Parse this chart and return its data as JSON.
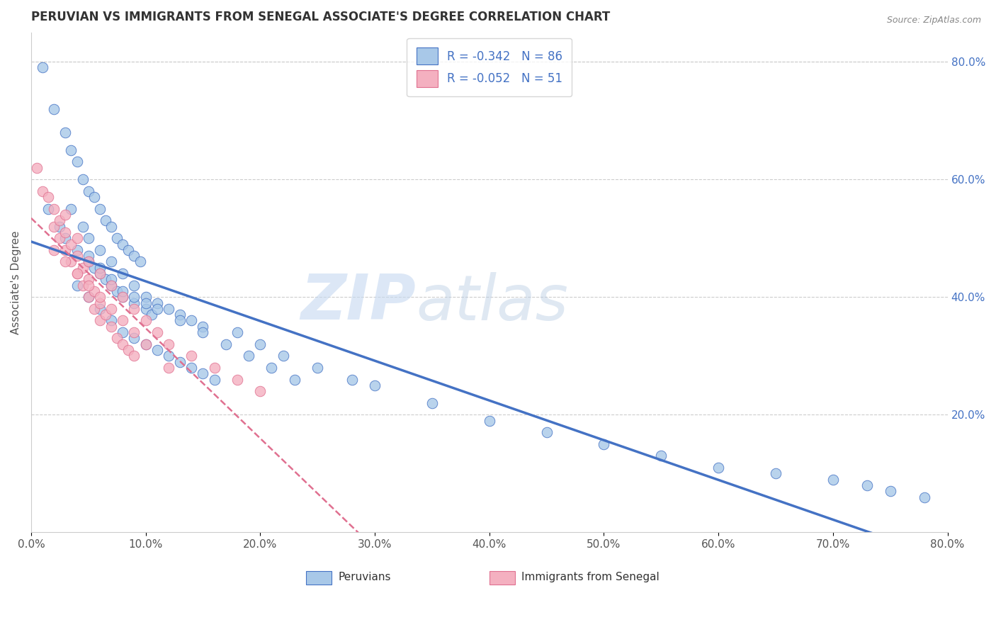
{
  "title": "PERUVIAN VS IMMIGRANTS FROM SENEGAL ASSOCIATE'S DEGREE CORRELATION CHART",
  "source": "Source: ZipAtlas.com",
  "ylabel": "Associate's Degree",
  "legend_label1": "R = -0.342   N = 86",
  "legend_label2": "R = -0.052   N = 51",
  "color_blue": "#a8c8e8",
  "color_pink": "#f4b0c0",
  "line_color_blue": "#4472c4",
  "line_color_pink": "#e07090",
  "watermark_zip": "ZIP",
  "watermark_atlas": "atlas",
  "blue_x": [
    1.0,
    2.0,
    3.0,
    3.5,
    4.0,
    4.5,
    5.0,
    5.5,
    6.0,
    6.5,
    7.0,
    7.5,
    8.0,
    8.5,
    9.0,
    9.5,
    1.5,
    2.5,
    3.0,
    4.0,
    5.0,
    5.5,
    6.0,
    6.5,
    7.0,
    7.5,
    8.0,
    9.0,
    10.0,
    10.5,
    3.5,
    4.5,
    5.0,
    6.0,
    7.0,
    8.0,
    9.0,
    10.0,
    11.0,
    12.0,
    13.0,
    14.0,
    15.0,
    4.0,
    5.0,
    6.0,
    7.0,
    8.0,
    9.0,
    10.0,
    11.0,
    12.0,
    13.0,
    14.0,
    15.0,
    16.0,
    5.0,
    6.0,
    7.0,
    8.0,
    9.0,
    10.0,
    11.0,
    13.0,
    15.0,
    17.0,
    19.0,
    21.0,
    23.0,
    18.0,
    20.0,
    22.0,
    25.0,
    28.0,
    30.0,
    35.0,
    40.0,
    45.0,
    50.0,
    55.0,
    60.0,
    65.0,
    70.0,
    73.0,
    75.0,
    78.0
  ],
  "blue_y": [
    79.0,
    72.0,
    68.0,
    65.0,
    63.0,
    60.0,
    58.0,
    57.0,
    55.0,
    53.0,
    52.0,
    50.0,
    49.0,
    48.0,
    47.0,
    46.0,
    55.0,
    52.0,
    50.0,
    48.0,
    46.0,
    45.0,
    44.0,
    43.0,
    42.0,
    41.0,
    40.0,
    39.0,
    38.0,
    37.0,
    55.0,
    52.0,
    50.0,
    48.0,
    46.0,
    44.0,
    42.0,
    40.0,
    39.0,
    38.0,
    37.0,
    36.0,
    35.0,
    42.0,
    40.0,
    38.0,
    36.0,
    34.0,
    33.0,
    32.0,
    31.0,
    30.0,
    29.0,
    28.0,
    27.0,
    26.0,
    47.0,
    45.0,
    43.0,
    41.0,
    40.0,
    39.0,
    38.0,
    36.0,
    34.0,
    32.0,
    30.0,
    28.0,
    26.0,
    34.0,
    32.0,
    30.0,
    28.0,
    26.0,
    25.0,
    22.0,
    19.0,
    17.0,
    15.0,
    13.0,
    11.0,
    10.0,
    9.0,
    8.0,
    7.0,
    6.0
  ],
  "pink_x": [
    0.5,
    1.0,
    1.5,
    2.0,
    2.0,
    2.5,
    2.5,
    3.0,
    3.0,
    3.5,
    3.5,
    4.0,
    4.0,
    4.5,
    4.5,
    5.0,
    5.0,
    5.5,
    5.5,
    6.0,
    6.0,
    6.5,
    7.0,
    7.5,
    8.0,
    8.5,
    9.0,
    3.0,
    4.0,
    5.0,
    6.0,
    7.0,
    8.0,
    9.0,
    10.0,
    11.0,
    12.0,
    14.0,
    16.0,
    18.0,
    20.0,
    2.0,
    3.0,
    4.0,
    5.0,
    6.0,
    7.0,
    8.0,
    9.0,
    10.0,
    12.0
  ],
  "pink_y": [
    62.0,
    58.0,
    57.0,
    55.0,
    52.0,
    53.0,
    50.0,
    51.0,
    48.0,
    49.0,
    46.0,
    47.0,
    44.0,
    45.0,
    42.0,
    43.0,
    40.0,
    41.0,
    38.0,
    39.0,
    36.0,
    37.0,
    35.0,
    33.0,
    32.0,
    31.0,
    30.0,
    54.0,
    50.0,
    46.0,
    44.0,
    42.0,
    40.0,
    38.0,
    36.0,
    34.0,
    32.0,
    30.0,
    28.0,
    26.0,
    24.0,
    48.0,
    46.0,
    44.0,
    42.0,
    40.0,
    38.0,
    36.0,
    34.0,
    32.0,
    28.0
  ],
  "xlim": [
    0,
    80
  ],
  "ylim": [
    0,
    85
  ],
  "xticks": [
    0,
    10,
    20,
    30,
    40,
    50,
    60,
    70,
    80
  ],
  "yticks_right": [
    20,
    40,
    60,
    80
  ],
  "xticklabels": [
    "0.0%",
    "10.0%",
    "20.0%",
    "30.0%",
    "40.0%",
    "50.0%",
    "60.0%",
    "70.0%",
    "80.0%"
  ],
  "yticklabels_right": [
    "20.0%",
    "40.0%",
    "60.0%",
    "80.0%"
  ],
  "title_fontsize": 12,
  "axis_fontsize": 11,
  "tick_fontsize": 11
}
